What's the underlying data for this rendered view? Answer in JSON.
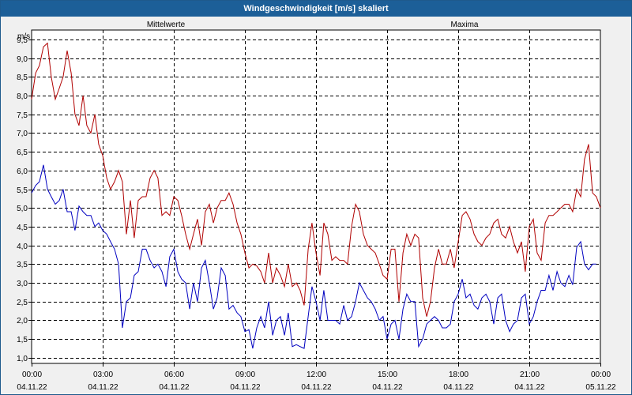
{
  "window": {
    "title": "Windgeschwindigkeit [m/s] skaliert"
  },
  "chart_data": {
    "type": "line",
    "title": "Windgeschwindigkeit [m/s] skaliert",
    "ylabel": "m/s",
    "xlabel": "",
    "ylim": [
      0.85,
      9.75
    ],
    "xlim_hours": [
      0,
      24
    ],
    "grid": true,
    "legend": "top",
    "y_ticks": [
      "1,0",
      "1,5",
      "2,0",
      "2,5",
      "3,0",
      "3,5",
      "4,0",
      "4,5",
      "5,0",
      "5,5",
      "6,0",
      "6,5",
      "7,0",
      "7,5",
      "8,0",
      "8,5",
      "9,0",
      "9,5"
    ],
    "x_ticks": [
      {
        "time": "00:00",
        "date": "04.11.22"
      },
      {
        "time": "03:00",
        "date": "04.11.22"
      },
      {
        "time": "06:00",
        "date": "04.11.22"
      },
      {
        "time": "09:00",
        "date": "04.11.22"
      },
      {
        "time": "12:00",
        "date": "04.11.22"
      },
      {
        "time": "15:00",
        "date": "04.11.22"
      },
      {
        "time": "18:00",
        "date": "04.11.22"
      },
      {
        "time": "21:00",
        "date": "04.11.22"
      },
      {
        "time": "00:00",
        "date": "05.11.22"
      }
    ],
    "series": [
      {
        "name": "Mittelwerte",
        "color": "#0000c0",
        "points": [
          [
            0.0,
            5.4
          ],
          [
            0.17,
            5.6
          ],
          [
            0.33,
            5.7
          ],
          [
            0.5,
            6.15
          ],
          [
            0.67,
            5.5
          ],
          [
            0.83,
            5.3
          ],
          [
            1.0,
            5.1
          ],
          [
            1.17,
            5.2
          ],
          [
            1.33,
            5.5
          ],
          [
            1.5,
            4.9
          ],
          [
            1.67,
            4.9
          ],
          [
            1.83,
            4.4
          ],
          [
            2.0,
            5.05
          ],
          [
            2.17,
            4.9
          ],
          [
            2.33,
            4.8
          ],
          [
            2.5,
            4.8
          ],
          [
            2.67,
            4.5
          ],
          [
            2.83,
            4.6
          ],
          [
            3.0,
            4.4
          ],
          [
            3.17,
            4.3
          ],
          [
            3.33,
            4.1
          ],
          [
            3.5,
            3.9
          ],
          [
            3.67,
            3.5
          ],
          [
            3.83,
            1.8
          ],
          [
            4.0,
            2.5
          ],
          [
            4.17,
            2.6
          ],
          [
            4.33,
            3.2
          ],
          [
            4.5,
            3.3
          ],
          [
            4.67,
            3.9
          ],
          [
            4.83,
            3.9
          ],
          [
            5.0,
            3.6
          ],
          [
            5.17,
            3.4
          ],
          [
            5.33,
            3.5
          ],
          [
            5.5,
            3.3
          ],
          [
            5.67,
            2.9
          ],
          [
            5.83,
            3.7
          ],
          [
            6.0,
            3.9
          ],
          [
            6.17,
            3.3
          ],
          [
            6.33,
            3.1
          ],
          [
            6.5,
            3.0
          ],
          [
            6.67,
            2.3
          ],
          [
            6.83,
            3.0
          ],
          [
            7.0,
            2.5
          ],
          [
            7.17,
            3.4
          ],
          [
            7.33,
            3.6
          ],
          [
            7.5,
            3.0
          ],
          [
            7.67,
            2.3
          ],
          [
            7.83,
            2.6
          ],
          [
            8.0,
            3.4
          ],
          [
            8.17,
            3.2
          ],
          [
            8.33,
            2.3
          ],
          [
            8.5,
            2.4
          ],
          [
            8.67,
            2.2
          ],
          [
            8.83,
            2.1
          ],
          [
            9.0,
            1.7
          ],
          [
            9.17,
            1.75
          ],
          [
            9.33,
            1.25
          ],
          [
            9.5,
            1.8
          ],
          [
            9.67,
            2.1
          ],
          [
            9.83,
            1.8
          ],
          [
            10.0,
            2.5
          ],
          [
            10.17,
            1.6
          ],
          [
            10.33,
            2.0
          ],
          [
            10.5,
            2.1
          ],
          [
            10.67,
            1.6
          ],
          [
            10.83,
            2.2
          ],
          [
            11.0,
            1.3
          ],
          [
            11.17,
            1.35
          ],
          [
            11.33,
            1.3
          ],
          [
            11.5,
            1.25
          ],
          [
            11.67,
            2.1
          ],
          [
            11.83,
            2.9
          ],
          [
            12.0,
            2.5
          ],
          [
            12.17,
            2.0
          ],
          [
            12.33,
            2.8
          ],
          [
            12.5,
            2.0
          ],
          [
            12.67,
            2.0
          ],
          [
            12.83,
            2.0
          ],
          [
            13.0,
            1.9
          ],
          [
            13.17,
            2.4
          ],
          [
            13.33,
            2.0
          ],
          [
            13.5,
            2.1
          ],
          [
            13.67,
            2.5
          ],
          [
            13.83,
            3.0
          ],
          [
            14.0,
            2.8
          ],
          [
            14.17,
            2.6
          ],
          [
            14.33,
            2.5
          ],
          [
            14.5,
            2.3
          ],
          [
            14.67,
            2.0
          ],
          [
            14.83,
            2.1
          ],
          [
            15.0,
            1.5
          ],
          [
            15.17,
            1.9
          ],
          [
            15.33,
            2.0
          ],
          [
            15.5,
            1.5
          ],
          [
            15.67,
            2.3
          ],
          [
            15.83,
            2.7
          ],
          [
            16.0,
            2.5
          ],
          [
            16.17,
            2.5
          ],
          [
            16.33,
            1.3
          ],
          [
            16.5,
            1.5
          ],
          [
            16.67,
            1.9
          ],
          [
            16.83,
            2.0
          ],
          [
            17.0,
            2.1
          ],
          [
            17.17,
            2.0
          ],
          [
            17.33,
            1.8
          ],
          [
            17.5,
            1.8
          ],
          [
            17.67,
            1.9
          ],
          [
            17.83,
            2.5
          ],
          [
            18.0,
            2.7
          ],
          [
            18.17,
            3.1
          ],
          [
            18.33,
            2.6
          ],
          [
            18.5,
            2.7
          ],
          [
            18.67,
            2.4
          ],
          [
            18.83,
            2.3
          ],
          [
            19.0,
            2.6
          ],
          [
            19.17,
            2.7
          ],
          [
            19.33,
            2.5
          ],
          [
            19.5,
            1.9
          ],
          [
            19.67,
            2.6
          ],
          [
            19.83,
            2.7
          ],
          [
            20.0,
            2.0
          ],
          [
            20.17,
            1.7
          ],
          [
            20.33,
            1.9
          ],
          [
            20.5,
            2.0
          ],
          [
            20.67,
            2.6
          ],
          [
            20.83,
            2.7
          ],
          [
            21.0,
            1.9
          ],
          [
            21.17,
            2.1
          ],
          [
            21.33,
            2.5
          ],
          [
            21.5,
            2.8
          ],
          [
            21.67,
            2.8
          ],
          [
            21.83,
            3.2
          ],
          [
            22.0,
            2.8
          ],
          [
            22.17,
            3.3
          ],
          [
            22.33,
            3.0
          ],
          [
            22.5,
            2.9
          ],
          [
            22.67,
            3.2
          ],
          [
            22.83,
            2.95
          ],
          [
            23.0,
            3.95
          ],
          [
            23.17,
            4.1
          ],
          [
            23.33,
            3.5
          ],
          [
            23.5,
            3.35
          ],
          [
            23.67,
            3.5
          ],
          [
            23.83,
            3.5
          ]
        ]
      },
      {
        "name": "Maxima",
        "color": "#b00000",
        "points": [
          [
            0.0,
            7.9
          ],
          [
            0.17,
            8.6
          ],
          [
            0.33,
            8.8
          ],
          [
            0.5,
            9.3
          ],
          [
            0.67,
            9.4
          ],
          [
            0.83,
            8.5
          ],
          [
            1.0,
            7.9
          ],
          [
            1.17,
            8.2
          ],
          [
            1.33,
            8.5
          ],
          [
            1.5,
            9.2
          ],
          [
            1.67,
            8.6
          ],
          [
            1.83,
            7.5
          ],
          [
            2.0,
            7.2
          ],
          [
            2.17,
            8.0
          ],
          [
            2.33,
            7.2
          ],
          [
            2.5,
            7.0
          ],
          [
            2.67,
            7.5
          ],
          [
            2.83,
            6.7
          ],
          [
            3.0,
            6.4
          ],
          [
            3.17,
            5.8
          ],
          [
            3.33,
            5.5
          ],
          [
            3.5,
            5.7
          ],
          [
            3.67,
            6.0
          ],
          [
            3.83,
            5.7
          ],
          [
            4.0,
            4.3
          ],
          [
            4.17,
            5.2
          ],
          [
            4.33,
            4.2
          ],
          [
            4.5,
            5.2
          ],
          [
            4.67,
            5.3
          ],
          [
            4.83,
            5.3
          ],
          [
            5.0,
            5.8
          ],
          [
            5.17,
            6.0
          ],
          [
            5.33,
            5.8
          ],
          [
            5.5,
            4.8
          ],
          [
            5.67,
            4.9
          ],
          [
            5.83,
            4.8
          ],
          [
            6.0,
            5.3
          ],
          [
            6.17,
            5.2
          ],
          [
            6.33,
            4.8
          ],
          [
            6.5,
            4.3
          ],
          [
            6.67,
            3.9
          ],
          [
            6.83,
            4.3
          ],
          [
            7.0,
            4.7
          ],
          [
            7.17,
            4.0
          ],
          [
            7.33,
            4.9
          ],
          [
            7.5,
            5.1
          ],
          [
            7.67,
            4.6
          ],
          [
            7.83,
            5.0
          ],
          [
            8.0,
            5.2
          ],
          [
            8.17,
            5.2
          ],
          [
            8.33,
            5.4
          ],
          [
            8.5,
            5.1
          ],
          [
            8.67,
            4.6
          ],
          [
            8.83,
            4.3
          ],
          [
            9.0,
            3.8
          ],
          [
            9.17,
            3.4
          ],
          [
            9.33,
            3.5
          ],
          [
            9.5,
            3.45
          ],
          [
            9.67,
            3.3
          ],
          [
            9.83,
            3.0
          ],
          [
            10.0,
            3.8
          ],
          [
            10.17,
            3.0
          ],
          [
            10.33,
            3.4
          ],
          [
            10.5,
            3.2
          ],
          [
            10.67,
            2.9
          ],
          [
            10.83,
            3.5
          ],
          [
            11.0,
            2.9
          ],
          [
            11.17,
            3.0
          ],
          [
            11.33,
            2.8
          ],
          [
            11.5,
            2.4
          ],
          [
            11.67,
            3.9
          ],
          [
            11.83,
            4.6
          ],
          [
            12.0,
            3.8
          ],
          [
            12.17,
            3.2
          ],
          [
            12.33,
            4.6
          ],
          [
            12.5,
            4.3
          ],
          [
            12.67,
            3.6
          ],
          [
            12.83,
            3.7
          ],
          [
            13.0,
            3.6
          ],
          [
            13.17,
            3.6
          ],
          [
            13.33,
            3.5
          ],
          [
            13.5,
            4.5
          ],
          [
            13.67,
            5.1
          ],
          [
            13.83,
            4.9
          ],
          [
            14.0,
            4.3
          ],
          [
            14.17,
            4.0
          ],
          [
            14.33,
            3.9
          ],
          [
            14.5,
            3.8
          ],
          [
            14.67,
            3.5
          ],
          [
            14.83,
            3.2
          ],
          [
            15.0,
            3.1
          ],
          [
            15.17,
            3.9
          ],
          [
            15.33,
            3.9
          ],
          [
            15.5,
            2.5
          ],
          [
            15.67,
            3.8
          ],
          [
            15.83,
            4.3
          ],
          [
            16.0,
            4.0
          ],
          [
            16.17,
            4.3
          ],
          [
            16.33,
            4.2
          ],
          [
            16.5,
            2.6
          ],
          [
            16.67,
            2.1
          ],
          [
            16.83,
            2.5
          ],
          [
            17.0,
            3.4
          ],
          [
            17.17,
            3.9
          ],
          [
            17.33,
            3.5
          ],
          [
            17.5,
            3.5
          ],
          [
            17.67,
            3.9
          ],
          [
            17.83,
            3.4
          ],
          [
            18.0,
            4.1
          ],
          [
            18.17,
            4.8
          ],
          [
            18.33,
            4.9
          ],
          [
            18.5,
            4.7
          ],
          [
            18.67,
            4.3
          ],
          [
            18.83,
            4.1
          ],
          [
            19.0,
            4.0
          ],
          [
            19.17,
            4.2
          ],
          [
            19.33,
            4.3
          ],
          [
            19.5,
            4.6
          ],
          [
            19.67,
            4.7
          ],
          [
            19.83,
            4.3
          ],
          [
            20.0,
            4.2
          ],
          [
            20.17,
            4.5
          ],
          [
            20.33,
            4.1
          ],
          [
            20.5,
            3.8
          ],
          [
            20.67,
            4.1
          ],
          [
            20.83,
            3.3
          ],
          [
            21.0,
            4.5
          ],
          [
            21.17,
            4.7
          ],
          [
            21.33,
            3.8
          ],
          [
            21.5,
            3.6
          ],
          [
            21.67,
            4.6
          ],
          [
            21.83,
            4.8
          ],
          [
            22.0,
            4.8
          ],
          [
            22.17,
            4.9
          ],
          [
            22.33,
            5.0
          ],
          [
            22.5,
            5.1
          ],
          [
            22.67,
            5.1
          ],
          [
            22.83,
            4.9
          ],
          [
            23.0,
            5.5
          ],
          [
            23.17,
            5.3
          ],
          [
            23.33,
            6.3
          ],
          [
            23.5,
            6.7
          ],
          [
            23.67,
            5.4
          ],
          [
            23.83,
            5.3
          ],
          [
            24.0,
            5.0
          ]
        ]
      }
    ]
  }
}
